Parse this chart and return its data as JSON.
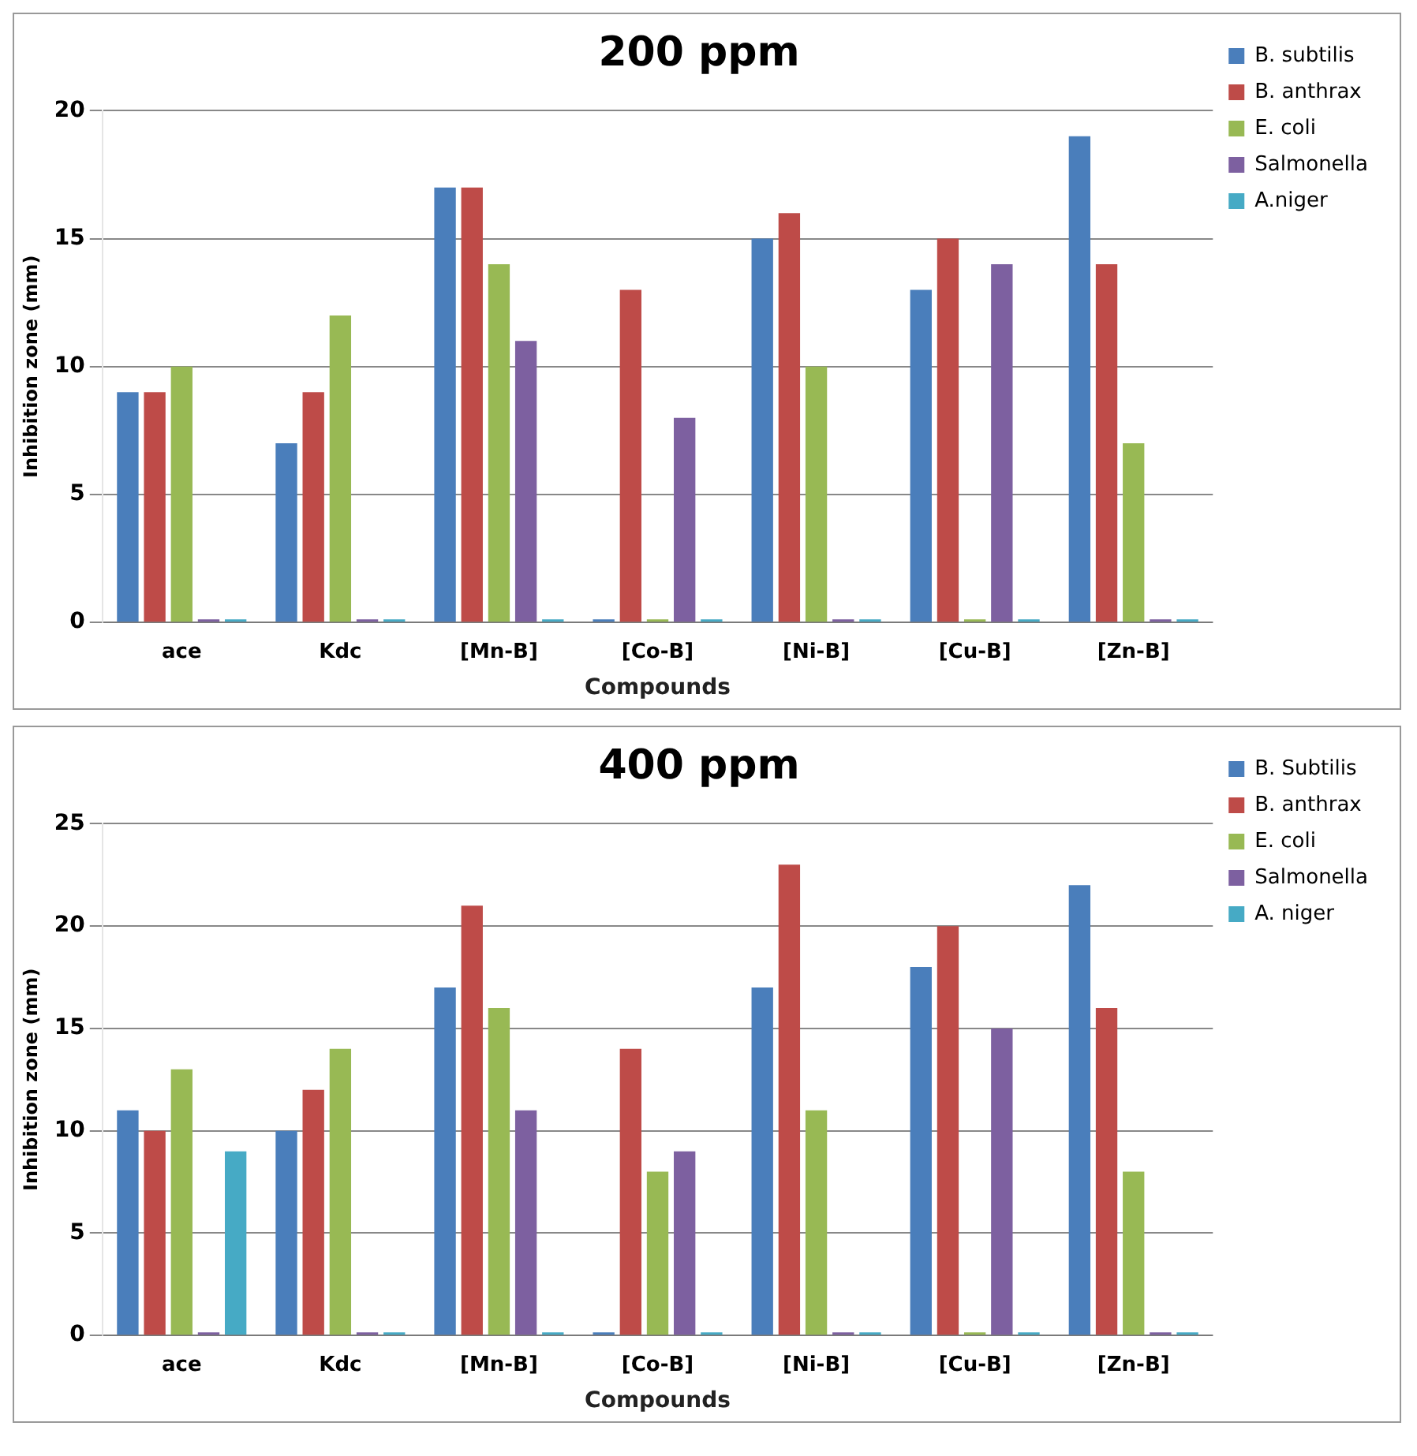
{
  "chart_data": [
    {
      "type": "bar",
      "title": "200 ppm",
      "xlabel": "Compounds",
      "ylabel": "Inhibition zone (mm)",
      "categories": [
        "ace",
        "Kdc",
        "[Mn-B]",
        "[Co-B]",
        "[Ni-B]",
        "[Cu-B]",
        "[Zn-B]"
      ],
      "series": [
        {
          "name": "B. subtilis",
          "color": "#4a7ebb",
          "values": [
            9,
            7,
            17,
            0,
            15,
            13,
            19
          ]
        },
        {
          "name": "B. anthrax",
          "color": "#be4b48",
          "values": [
            9,
            9,
            17,
            13,
            16,
            15,
            14
          ]
        },
        {
          "name": "E. coli",
          "color": "#98b954",
          "values": [
            10,
            12,
            14,
            0,
            10,
            0,
            7
          ]
        },
        {
          "name": "Salmonella",
          "color": "#7d60a0",
          "values": [
            0,
            0,
            11,
            8,
            0,
            14,
            0
          ]
        },
        {
          "name": "A.niger",
          "color": "#46aac5",
          "values": [
            0,
            0,
            0,
            0,
            0,
            0,
            0
          ]
        }
      ],
      "ylim": [
        0,
        20
      ],
      "yticks": [
        0,
        5,
        10,
        15,
        20
      ],
      "grid": "y",
      "legend": "right"
    },
    {
      "type": "bar",
      "title": "400 ppm",
      "xlabel": "Compounds",
      "ylabel": "Inhibition zone (mm)",
      "categories": [
        "ace",
        "Kdc",
        "[Mn-B]",
        "[Co-B]",
        "[Ni-B]",
        "[Cu-B]",
        "[Zn-B]"
      ],
      "series": [
        {
          "name": "B. Subtilis",
          "color": "#4a7ebb",
          "values": [
            11,
            10,
            17,
            0,
            17,
            18,
            22
          ]
        },
        {
          "name": "B. anthrax",
          "color": "#be4b48",
          "values": [
            10,
            12,
            21,
            14,
            23,
            20,
            16
          ]
        },
        {
          "name": "E. coli",
          "color": "#98b954",
          "values": [
            13,
            14,
            16,
            8,
            11,
            0,
            8
          ]
        },
        {
          "name": "Salmonella",
          "color": "#7d60a0",
          "values": [
            0,
            0,
            11,
            9,
            0,
            15,
            0
          ]
        },
        {
          "name": "A. niger",
          "color": "#46aac5",
          "values": [
            9,
            0,
            0,
            0,
            0,
            0,
            0
          ]
        }
      ],
      "ylim": [
        0,
        25
      ],
      "yticks": [
        0,
        5,
        10,
        15,
        20,
        25
      ],
      "grid": "y",
      "legend": "right"
    }
  ]
}
